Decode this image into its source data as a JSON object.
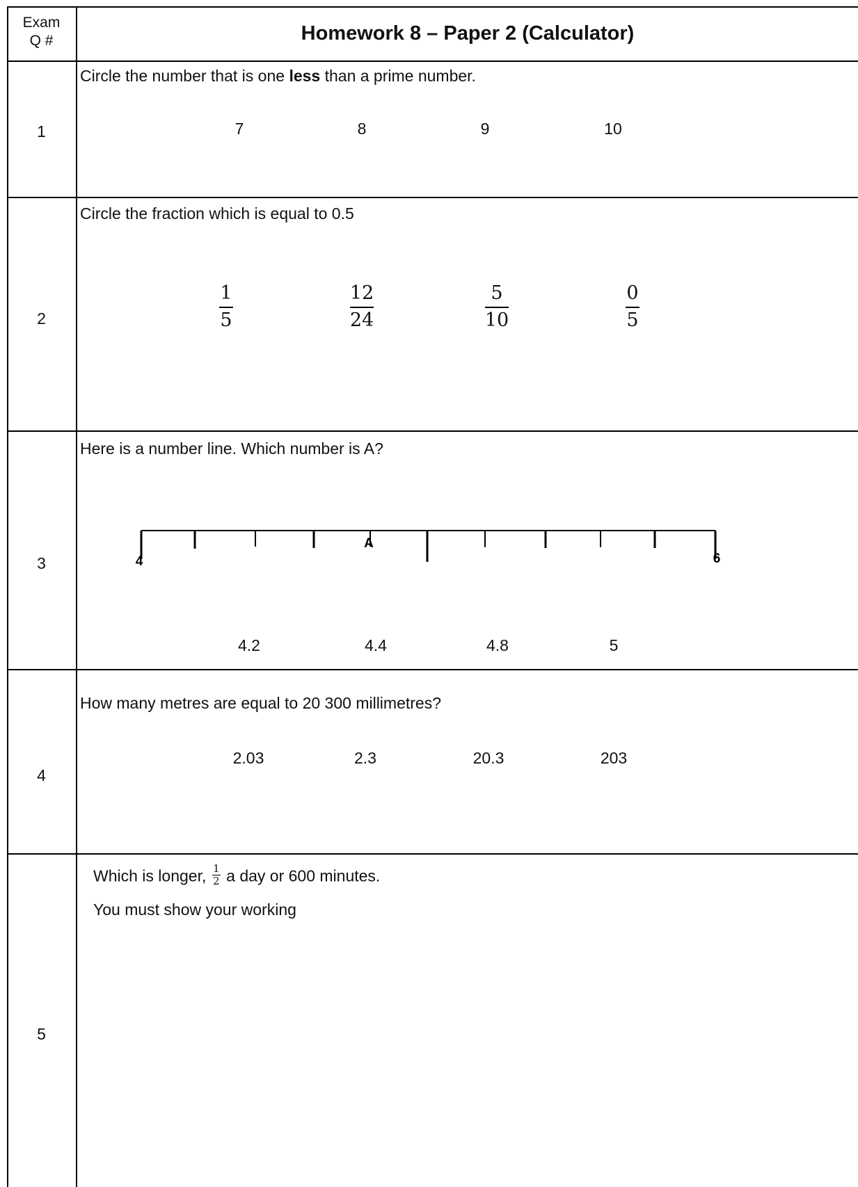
{
  "header": {
    "exam_line1": "Exam",
    "exam_line2": "Q #",
    "title": "Homework 8 – Paper 2 (Calculator)"
  },
  "q1": {
    "number": "1",
    "text_before": "Circle the number that is one ",
    "text_bold": "less",
    "text_after": " than a prime number.",
    "options": [
      "7",
      "8",
      "9",
      "10"
    ]
  },
  "q2": {
    "number": "2",
    "text": "Circle the fraction which is equal to 0.5",
    "options": [
      {
        "num": "1",
        "den": "5"
      },
      {
        "num": "12",
        "den": "24"
      },
      {
        "num": "5",
        "den": "10"
      },
      {
        "num": "0",
        "den": "5"
      }
    ]
  },
  "q3": {
    "number": "3",
    "text": "Here is a number line. Which number is A?",
    "line_start_label": "4",
    "line_end_label": "6",
    "marker_label": "A",
    "options": [
      "4.2",
      "4.4",
      "4.8",
      "5"
    ]
  },
  "q4": {
    "number": "4",
    "text": "How many metres are equal to 20 300 millimetres?",
    "options": [
      "2.03",
      "2.3",
      "20.3",
      "203"
    ]
  },
  "q5": {
    "number": "5",
    "text_before": "Which is longer, ",
    "frac_num": "1",
    "frac_den": "2",
    "text_after": " a day or 600 minutes.",
    "instruction": "You must show your working"
  }
}
